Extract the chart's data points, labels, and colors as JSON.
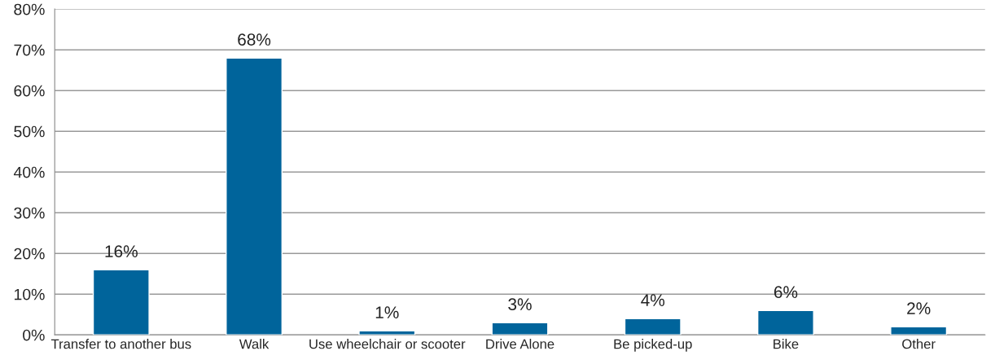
{
  "chart_data": {
    "type": "bar",
    "categories": [
      "Transfer to another bus",
      "Walk",
      "Use wheelchair or scooter",
      "Drive Alone",
      "Be picked-up",
      "Bike",
      "Other"
    ],
    "values": [
      16,
      68,
      1,
      3,
      4,
      6,
      2
    ],
    "value_labels": [
      "16%",
      "68%",
      "1%",
      "3%",
      "4%",
      "6%",
      "2%"
    ],
    "color": "#00649b",
    "ylim": [
      0,
      80
    ],
    "yticks": [
      {
        "value": 0,
        "label": "0%"
      },
      {
        "value": 10,
        "label": "10%"
      },
      {
        "value": 20,
        "label": "20%"
      },
      {
        "value": 30,
        "label": "30%"
      },
      {
        "value": 40,
        "label": "40%"
      },
      {
        "value": 50,
        "label": "50%"
      },
      {
        "value": 60,
        "label": "60%"
      },
      {
        "value": 70,
        "label": "70%"
      },
      {
        "value": 80,
        "label": "80%"
      }
    ],
    "grid": "y"
  }
}
